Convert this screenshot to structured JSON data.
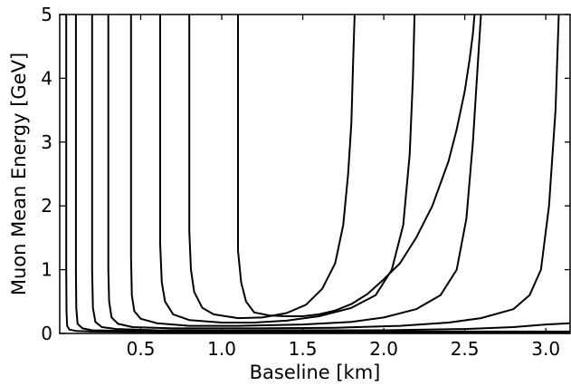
{
  "chart_data": {
    "type": "line",
    "title": "",
    "xlabel": "Baseline [km]",
    "ylabel": "Muon Mean Energy [GeV]",
    "xlim": [
      0.0,
      3.15
    ],
    "ylim": [
      0,
      5
    ],
    "xticks": [
      0.5,
      1.0,
      1.5,
      2.0,
      2.5,
      3.0
    ],
    "xtick_labels": [
      "0.5",
      "1.0",
      "1.5",
      "2.0",
      "2.5",
      "3.0"
    ],
    "yticks": [
      0,
      1,
      2,
      3,
      4,
      5
    ],
    "ytick_labels": [
      "0",
      "1",
      "2",
      "3",
      "4",
      "5"
    ],
    "grid": false,
    "legend": null,
    "series": [
      {
        "x": [
          0.04,
          0.04,
          0.04,
          0.042,
          0.046,
          0.06,
          0.1,
          0.2,
          0.4,
          0.8,
          1.5,
          2.5,
          3.15
        ],
        "y": [
          5.0,
          3.0,
          1.0,
          0.35,
          0.12,
          0.06,
          0.04,
          0.03,
          0.025,
          0.02,
          0.02,
          0.02,
          0.02
        ]
      },
      {
        "x": [
          0.1,
          0.1,
          0.1,
          0.102,
          0.11,
          0.14,
          0.2,
          0.4,
          0.8,
          1.5,
          2.5,
          3.15
        ],
        "y": [
          5.0,
          3.0,
          1.0,
          0.4,
          0.15,
          0.08,
          0.05,
          0.04,
          0.035,
          0.03,
          0.03,
          0.03
        ]
      },
      {
        "x": [
          0.2,
          0.2,
          0.2,
          0.205,
          0.22,
          0.26,
          0.35,
          0.6,
          1.0,
          1.5,
          2.0,
          2.5,
          2.8,
          3.0,
          3.15
        ],
        "y": [
          5.0,
          3.0,
          1.0,
          0.4,
          0.18,
          0.1,
          0.07,
          0.05,
          0.045,
          0.05,
          0.05,
          0.07,
          0.1,
          0.14,
          0.16
        ]
      },
      {
        "x": [
          0.3,
          0.3,
          0.3,
          0.305,
          0.32,
          0.36,
          0.45,
          0.7,
          1.2,
          1.7,
          2.1,
          2.4,
          2.6,
          2.8,
          2.9,
          2.97,
          3.02,
          3.06,
          3.08
        ],
        "y": [
          5.0,
          3.0,
          1.0,
          0.5,
          0.25,
          0.15,
          0.1,
          0.08,
          0.08,
          0.09,
          0.12,
          0.17,
          0.24,
          0.38,
          0.6,
          1.0,
          2.0,
          3.5,
          5.0
        ]
      },
      {
        "x": [
          0.44,
          0.44,
          0.44,
          0.445,
          0.46,
          0.5,
          0.6,
          0.8,
          1.1,
          1.5,
          1.8,
          2.0,
          2.2,
          2.35,
          2.45,
          2.51,
          2.55,
          2.58,
          2.6
        ],
        "y": [
          5.0,
          3.0,
          1.2,
          0.6,
          0.35,
          0.23,
          0.16,
          0.12,
          0.12,
          0.14,
          0.18,
          0.25,
          0.38,
          0.6,
          1.0,
          1.8,
          3.0,
          4.2,
          5.0
        ]
      },
      {
        "x": [
          0.62,
          0.62,
          0.62,
          0.63,
          0.65,
          0.7,
          0.8,
          1.0,
          1.2,
          1.4,
          1.6,
          1.8,
          1.95,
          2.05,
          2.12,
          2.16,
          2.18,
          2.19
        ],
        "y": [
          5.0,
          3.0,
          1.4,
          0.8,
          0.5,
          0.3,
          0.21,
          0.17,
          0.17,
          0.2,
          0.27,
          0.4,
          0.6,
          1.0,
          1.7,
          2.8,
          4.0,
          5.0
        ]
      },
      {
        "x": [
          0.8,
          0.8,
          0.8,
          0.81,
          0.83,
          0.88,
          0.95,
          1.1,
          1.25,
          1.4,
          1.52,
          1.62,
          1.7,
          1.75,
          1.78,
          1.8,
          1.81,
          1.82
        ],
        "y": [
          5.0,
          3.0,
          1.6,
          1.0,
          0.65,
          0.4,
          0.3,
          0.24,
          0.25,
          0.32,
          0.45,
          0.7,
          1.1,
          1.7,
          2.5,
          3.3,
          4.2,
          5.0
        ]
      },
      {
        "x": [
          1.1,
          1.1,
          1.1,
          1.12,
          1.15,
          1.2,
          1.3,
          1.4,
          1.5,
          1.6,
          1.7,
          1.8,
          1.9,
          2.0,
          2.1,
          2.2,
          2.3,
          2.4,
          2.45,
          2.5,
          2.53,
          2.55,
          2.56
        ],
        "y": [
          5.0,
          3.0,
          1.3,
          0.8,
          0.5,
          0.33,
          0.28,
          0.27,
          0.27,
          0.3,
          0.36,
          0.46,
          0.62,
          0.85,
          1.1,
          1.5,
          2.0,
          2.7,
          3.2,
          3.8,
          4.3,
          4.7,
          5.0
        ]
      }
    ]
  }
}
